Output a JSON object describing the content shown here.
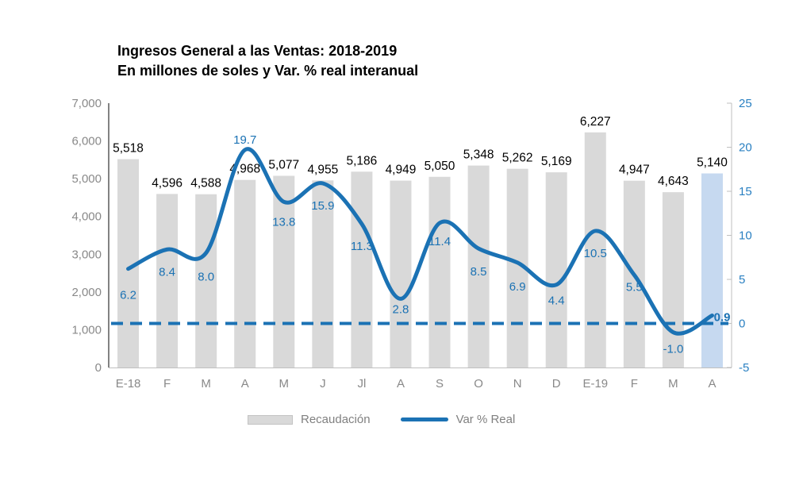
{
  "chart_data": {
    "type": "combo-bar-line",
    "title": "Ingresos General a las Ventas: 2018-2019",
    "subtitle": "En millones de soles y Var. % real interanual",
    "categories": [
      "E-18",
      "F",
      "M",
      "A",
      "M",
      "J",
      "Jl",
      "A",
      "S",
      "O",
      "N",
      "D",
      "E-19",
      "F",
      "M",
      "A"
    ],
    "series": [
      {
        "name": "Recaudación",
        "type": "bar",
        "axis": "left",
        "values": [
          5518,
          4596,
          4588,
          4968,
          5077,
          4955,
          5186,
          4949,
          5050,
          5348,
          5262,
          5169,
          6227,
          4947,
          4643,
          5140
        ],
        "data_labels": [
          "5,518",
          "4,596",
          "4,588",
          "4,968",
          "5,077",
          "4,955",
          "5,186",
          "4,949",
          "5,050",
          "5,348",
          "5,262",
          "5,169",
          "6,227",
          "4,947",
          "4,643",
          "5,140"
        ],
        "color": "#d9d9d9",
        "highlight_index": 15,
        "highlight_color": "#c6d9f0"
      },
      {
        "name": "Var % Real",
        "type": "line",
        "axis": "right",
        "values": [
          6.2,
          8.4,
          8.0,
          19.7,
          13.8,
          15.9,
          11.3,
          2.8,
          11.4,
          8.5,
          6.9,
          4.4,
          10.5,
          5.5,
          -1.0,
          0.9
        ],
        "data_labels": [
          "6.2",
          "8.4",
          "8.0",
          "19.7",
          "13.8",
          "15.9",
          "11.3",
          "2.8",
          "11.4",
          "8.5",
          "6.9",
          "4.4",
          "10.5",
          "5.5",
          "-1.0",
          "0.9"
        ],
        "color": "#1b72b4",
        "smooth": true
      }
    ],
    "left_axis": {
      "min": 0,
      "max": 7000,
      "step": 1000,
      "tick_labels": [
        "0",
        "1,000",
        "2,000",
        "3,000",
        "4,000",
        "5,000",
        "6,000",
        "7,000"
      ]
    },
    "right_axis": {
      "min": -5,
      "max": 25,
      "step": 5,
      "tick_labels": [
        "-5",
        "0",
        "5",
        "10",
        "15",
        "20",
        "25"
      ]
    },
    "reference_line": {
      "axis": "right",
      "value": 0,
      "style": "dashed",
      "color": "#1b72b4"
    },
    "legend": {
      "position": "bottom",
      "entries": [
        {
          "label": "Recaudación",
          "swatch": "bar"
        },
        {
          "label": "Var % Real",
          "swatch": "line"
        }
      ]
    },
    "grid": false,
    "colors": {
      "bar": "#d9d9d9",
      "bar_highlight": "#c6d9f0",
      "line": "#1b72b4",
      "right_axis_text": "#2a80c2",
      "axis_text": "#898989",
      "bar_label_text": "#000000",
      "plot_border": "#bfbfbf",
      "left_axis_line": "#595959",
      "background": "#ffffff"
    }
  }
}
